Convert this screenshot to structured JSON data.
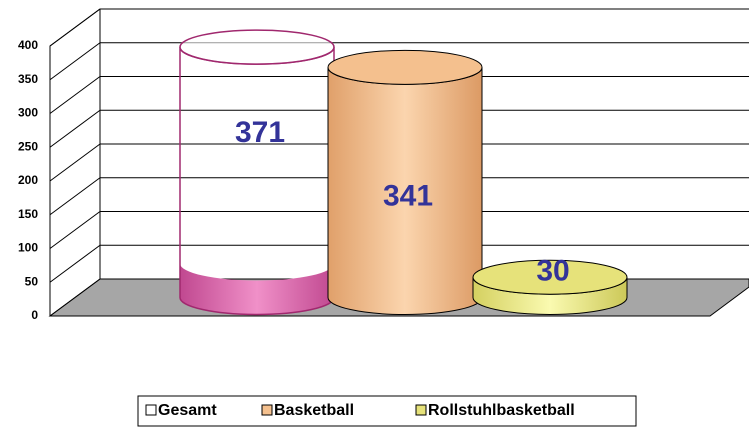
{
  "chart_data": {
    "type": "cylinder",
    "series": [
      {
        "name": "Gesamt",
        "color": "#d060a8",
        "outline": true,
        "values": [
          371
        ]
      },
      {
        "name": "Basketball",
        "color": "#f4c08e",
        "values": [
          341
        ]
      },
      {
        "name": "Rollstuhlbasketball",
        "color": "#e6e27a",
        "values": [
          30
        ]
      }
    ],
    "ylim": [
      0,
      400
    ],
    "yticks": [
      0,
      50,
      100,
      150,
      200,
      250,
      300,
      350,
      400
    ],
    "grid": true,
    "legend": "bottom"
  }
}
